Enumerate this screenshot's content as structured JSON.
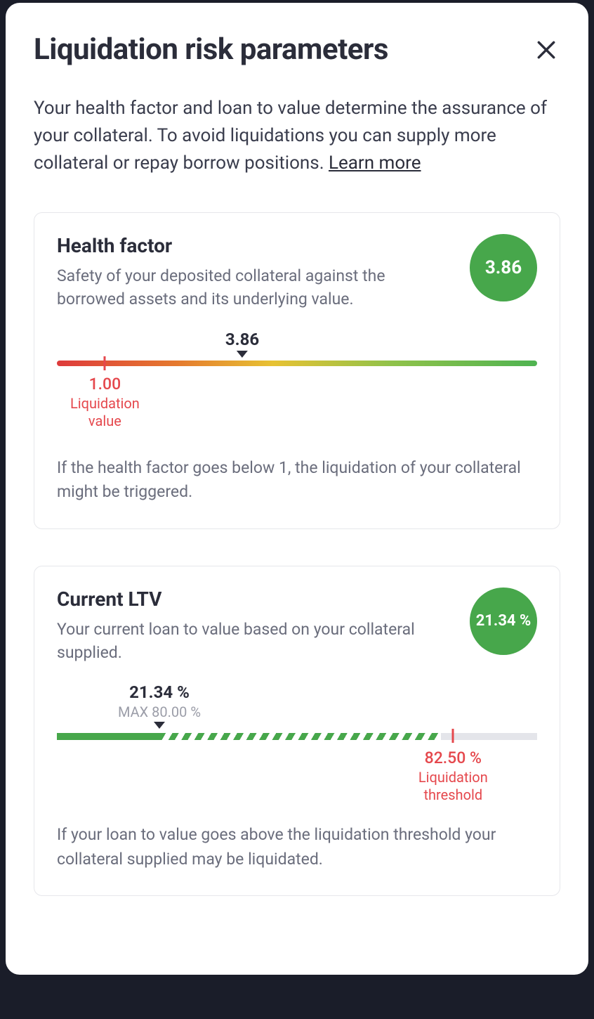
{
  "colors": {
    "text_primary": "#2b2d3a",
    "text_secondary": "#6a6d7c",
    "text_muted": "#9b9da8",
    "border": "#e6e7eb",
    "green": "#47a74b",
    "red": "#e5484d",
    "track": "#e4e5ea",
    "stripe_bg": "#ffffff",
    "hf_gradient": "linear-gradient(90deg,#de3b3b 0%,#e57a2f 25%,#e7c233 45%,#8fc24a 70%,#4fb351 100%)",
    "ltv_stripe_pattern": "repeating-linear-gradient(120deg,#47a74b 0 8px,#ffffff 8px 16px)"
  },
  "modal": {
    "title": "Liquidation risk parameters",
    "description": "Your health factor and loan to value determine the assurance of your collateral. To avoid liquidations you can supply more collateral or repay borrow positions. ",
    "learn_more": "Learn more"
  },
  "health_factor": {
    "title": "Health factor",
    "subtitle": "Safety of your deposited collateral against the borrowed assets and its underlying value.",
    "badge_value": "3.86",
    "current_label": "3.86",
    "current_position_pct": 38.6,
    "liquidation_value": "1.00",
    "liquidation_label": "Liquidation\nvalue",
    "liquidation_position_pct": 10,
    "liquidation_color": "#e5484d",
    "footer": "If the health factor goes below 1, the liquidation of your collateral might be triggered."
  },
  "ltv": {
    "title": "Current LTV",
    "subtitle": "Your current loan to value based on your collateral supplied.",
    "badge_value": "21.34 %",
    "current_label": "21.34 %",
    "current_sub": "MAX 80.00 %",
    "current_position_pct": 21.34,
    "max_position_pct": 80,
    "threshold_value": "82.50 %",
    "threshold_label": "Liquidation\nthreshold",
    "threshold_position_pct": 82.5,
    "threshold_color": "#e5484d",
    "footer": "If your loan to value goes above the liquidation threshold your collateral supplied may be liquidated."
  }
}
